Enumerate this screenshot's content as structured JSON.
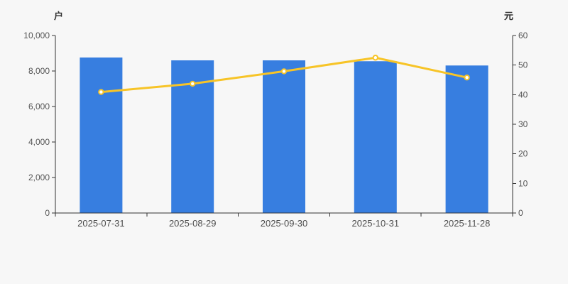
{
  "chart_data": {
    "type": "bar",
    "combo_with_line": true,
    "categories": [
      "2025-07-31",
      "2025-08-29",
      "2025-09-30",
      "2025-10-31",
      "2025-11-28"
    ],
    "series": [
      {
        "name": "households-bars",
        "type": "bar",
        "axis": "left",
        "unit": "户",
        "color": "#377ee0",
        "values": [
          8760,
          8600,
          8600,
          8550,
          8310
        ]
      },
      {
        "name": "value-per-holder-line",
        "type": "line",
        "axis": "right",
        "unit": "元",
        "color": "#f7c427",
        "marker_fill": "#ffffff",
        "values": [
          40.9,
          43.7,
          47.9,
          52.5,
          45.8
        ]
      }
    ],
    "left_axis": {
      "label": "户",
      "min": 0,
      "max": 10000,
      "tick_labels": [
        "0",
        "2,000",
        "4,000",
        "6,000",
        "8,000",
        "10,000"
      ]
    },
    "right_axis": {
      "label": "元",
      "min": 0,
      "max": 60,
      "tick_labels": [
        "0",
        "10",
        "20",
        "30",
        "40",
        "50",
        "60"
      ]
    },
    "title": "",
    "xlabel": "",
    "grid": false,
    "legend": false,
    "background": "#f7f7f7",
    "axis_line_color": "#333333",
    "tick_text_color": "#555555",
    "x_label_color": "#4d4d4d"
  }
}
